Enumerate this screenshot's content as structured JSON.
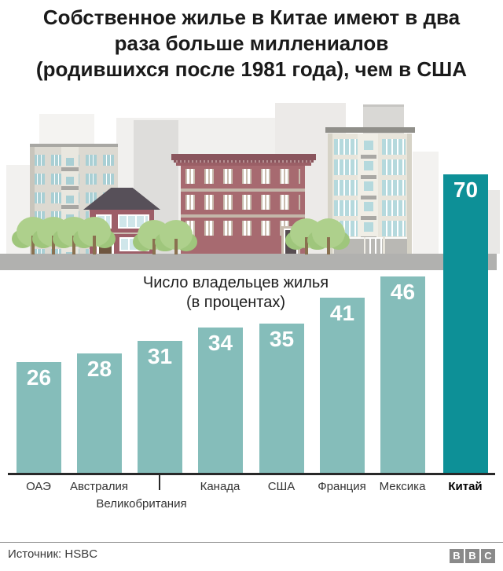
{
  "header": {
    "title": "Собственное жилье в Китае имеют в два раза больше миллениалов (родившихся после 1981 года), чем в США",
    "title_lines": [
      "Собственное жилье в Китае имеют в два",
      "раза больше миллениалов",
      "(родившихся после 1981 года), чем в США"
    ]
  },
  "chart_data": {
    "type": "bar",
    "title": "Число владельцев жилья (в процентах)",
    "title_line1": "Число владельцев жилья",
    "title_line2": "(в процентах)",
    "categories": [
      "ОАЭ",
      "Австралия",
      "Великобритания",
      "Канада",
      "США",
      "Франция",
      "Мексика",
      "Китай"
    ],
    "values": [
      26,
      28,
      31,
      34,
      35,
      41,
      46,
      70
    ],
    "unit": "percent",
    "ylim": [
      0,
      70
    ],
    "grid": false,
    "legend": "none",
    "highlight_category": "Китай",
    "colors": {
      "bar": "#85bdba",
      "highlight": "#0d9097",
      "axis": "#282828"
    }
  },
  "illustration": {
    "elements": [
      "background-skyline",
      "apartment-building-tan",
      "detached-house",
      "brick-building-red",
      "apartment-building-cream",
      "trees",
      "street"
    ]
  },
  "footer": {
    "source": "Источник: HSBC",
    "logo_letters": [
      "B",
      "B",
      "C"
    ]
  }
}
